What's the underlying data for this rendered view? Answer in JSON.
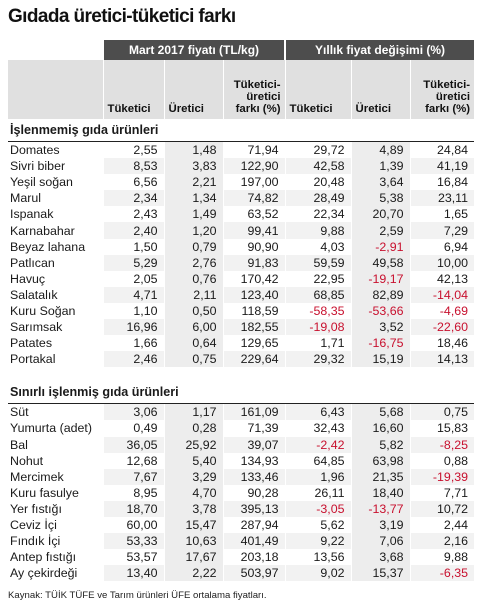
{
  "title": "Gıdada üretici-tüketici farkı",
  "header": {
    "group_price": "Mart 2017 fiyatı (TL/kg)",
    "group_change": "Yıllık fiyat değişimi (%)",
    "col_consumer": "Tüketici",
    "col_producer": "Üretici",
    "col_diff_l1": "Tüketici-",
    "col_diff_l2": "üretici",
    "col_diff_l3": "farkı (%)"
  },
  "sections": [
    {
      "title": "İşlenmemiş gıda ürünleri",
      "rows": [
        {
          "name": "Domates",
          "values": [
            "2,55",
            "1,48",
            "71,94",
            "29,72",
            "4,89",
            "24,84"
          ]
        },
        {
          "name": "Sivri biber",
          "values": [
            "8,53",
            "3,83",
            "122,90",
            "42,58",
            "1,39",
            "41,19"
          ]
        },
        {
          "name": "Yeşil soğan",
          "values": [
            "6,56",
            "2,21",
            "197,00",
            "20,48",
            "3,64",
            "16,84"
          ]
        },
        {
          "name": "Marul",
          "values": [
            "2,34",
            "1,34",
            "74,82",
            "28,49",
            "5,38",
            "23,11"
          ]
        },
        {
          "name": "Ispanak",
          "values": [
            "2,43",
            "1,49",
            "63,52",
            "22,34",
            "20,70",
            "1,65"
          ]
        },
        {
          "name": "Karnabahar",
          "values": [
            "2,40",
            "1,20",
            "99,41",
            "9,88",
            "2,59",
            "7,29"
          ]
        },
        {
          "name": "Beyaz lahana",
          "values": [
            "1,50",
            "0,79",
            "90,90",
            "4,03",
            "-2,91",
            "6,94"
          ]
        },
        {
          "name": "Patlıcan",
          "values": [
            "5,29",
            "2,76",
            "91,83",
            "59,59",
            "49,58",
            "10,00"
          ]
        },
        {
          "name": "Havuç",
          "values": [
            "2,05",
            "0,76",
            "170,42",
            "22,95",
            "-19,17",
            "42,13"
          ]
        },
        {
          "name": "Salatalık",
          "values": [
            "4,71",
            "2,11",
            "123,40",
            "68,85",
            "82,89",
            "-14,04"
          ]
        },
        {
          "name": "Kuru Soğan",
          "values": [
            "1,10",
            "0,50",
            "118,59",
            "-58,35",
            "-53,66",
            "-4,69"
          ]
        },
        {
          "name": "Sarımsak",
          "values": [
            "16,96",
            "6,00",
            "182,55",
            "-19,08",
            "3,52",
            "-22,60"
          ]
        },
        {
          "name": "Patates",
          "values": [
            "1,66",
            "0,64",
            "129,65",
            "1,71",
            "-16,75",
            "18,46"
          ]
        },
        {
          "name": "Portakal",
          "values": [
            "2,46",
            "0,75",
            "229,64",
            "29,32",
            "15,19",
            "14,13"
          ]
        }
      ]
    },
    {
      "title": "Sınırlı işlenmiş gıda ürünleri",
      "rows": [
        {
          "name": "Süt",
          "values": [
            "3,06",
            "1,17",
            "161,09",
            "6,43",
            "5,68",
            "0,75"
          ]
        },
        {
          "name": "Yumurta (adet)",
          "values": [
            "0,49",
            "0,28",
            "71,39",
            "32,43",
            "16,60",
            "15,83"
          ]
        },
        {
          "name": "Bal",
          "values": [
            "36,05",
            "25,92",
            "39,07",
            "-2,42",
            "5,82",
            "-8,25"
          ]
        },
        {
          "name": "Nohut",
          "values": [
            "12,68",
            "5,40",
            "134,93",
            "64,85",
            "63,98",
            "0,88"
          ]
        },
        {
          "name": "Mercimek",
          "values": [
            "7,67",
            "3,29",
            "133,46",
            "1,96",
            "21,35",
            "-19,39"
          ]
        },
        {
          "name": "Kuru fasulye",
          "values": [
            "8,95",
            "4,70",
            "90,28",
            "26,11",
            "18,40",
            "7,71"
          ]
        },
        {
          "name": "Yer fıstığı",
          "values": [
            "18,70",
            "3,78",
            "395,13",
            "-3,05",
            "-13,77",
            "10,72"
          ]
        },
        {
          "name": "Ceviz İçi",
          "values": [
            "60,00",
            "15,47",
            "287,94",
            "5,62",
            "3,19",
            "2,44"
          ]
        },
        {
          "name": "Fındık İçi",
          "values": [
            "53,33",
            "10,63",
            "401,49",
            "9,22",
            "7,06",
            "2,16"
          ]
        },
        {
          "name": "Antep fıstığı",
          "values": [
            "53,57",
            "17,67",
            "203,18",
            "13,56",
            "3,68",
            "9,88"
          ]
        },
        {
          "name": "Ay çekirdeği",
          "values": [
            "13,40",
            "2,22",
            "503,97",
            "9,02",
            "15,37",
            "-6,35"
          ]
        }
      ]
    }
  ],
  "source": "Kaynak: TÜİK TÜFE ve Tarım ürünleri ÜFE ortalama fiyatları.",
  "colors": {
    "negative": "#c8102e",
    "header_dark": "#4d4d4d",
    "header_light": "#e0e0e0"
  }
}
